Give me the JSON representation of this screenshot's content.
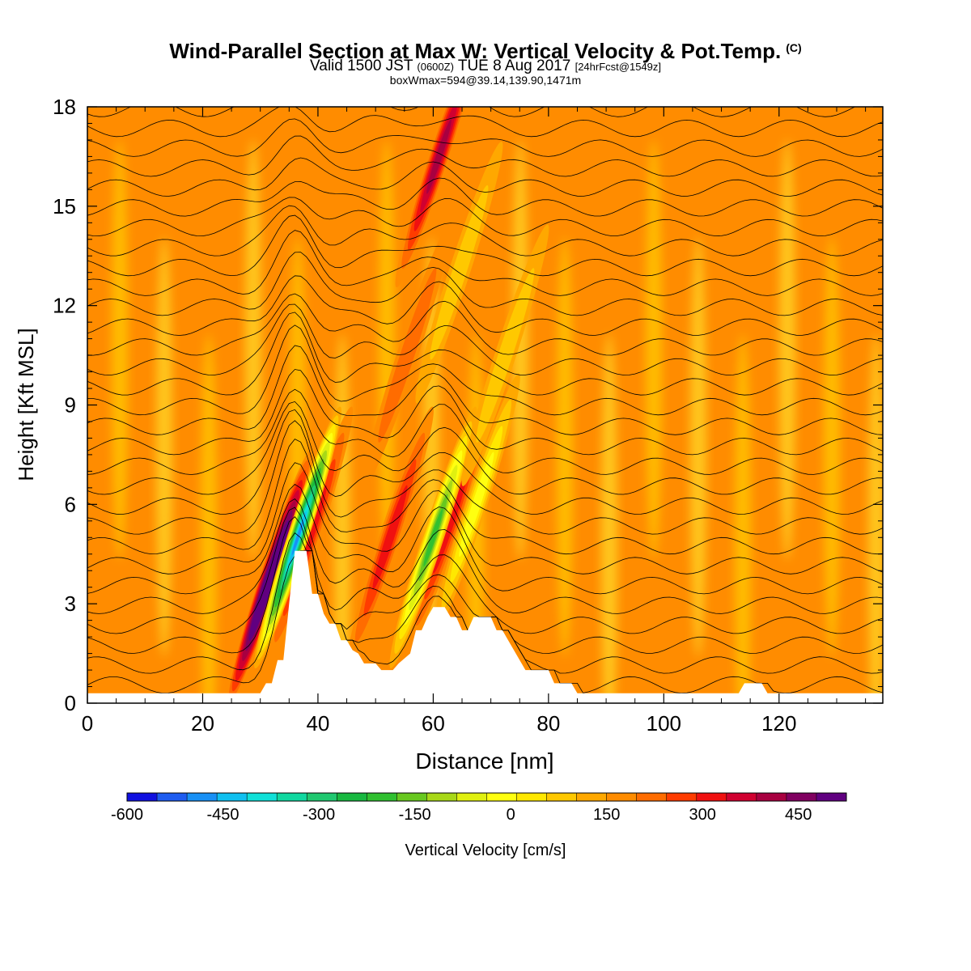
{
  "title": {
    "main": "Wind-Parallel Section at Max W: Vertical Velocity & Pot.Temp.",
    "copyright": "(C)",
    "valid_prefix": "Valid 1500 JST",
    "valid_utc": "(0600Z)",
    "valid_date": "TUE 8 Aug 2017",
    "forecast": "[24hrFcst@1549z]",
    "box_info": "boxWmax=594@39.14,139.90,1471m"
  },
  "chart_data": {
    "type": "heatmap",
    "xlabel": "Distance [nm]",
    "ylabel": "Height [Kft MSL]",
    "xlim": [
      0,
      138
    ],
    "ylim": [
      0,
      18
    ],
    "x_ticks": [
      0,
      20,
      40,
      60,
      80,
      100,
      120
    ],
    "y_ticks": [
      0,
      3,
      6,
      9,
      12,
      15,
      18
    ],
    "colorbar": {
      "label": "Vertical Velocity [cm/s]",
      "range": [
        -600,
        525
      ],
      "step": 37.5,
      "ticks": [
        -600,
        -450,
        -300,
        -150,
        0,
        150,
        300,
        450
      ],
      "colors": [
        "#1010e0",
        "#1e5cf0",
        "#1890f5",
        "#10c0f0",
        "#10e0d8",
        "#10d8a0",
        "#20c870",
        "#18b840",
        "#30c030",
        "#68c820",
        "#a8d818",
        "#e0f010",
        "#ffff10",
        "#ffe800",
        "#ffc800",
        "#ffa800",
        "#ff8c00",
        "#ff6c00",
        "#ff3c00",
        "#f01010",
        "#d00030",
        "#a80040",
        "#800060",
        "#600080"
      ]
    },
    "background_w": 0,
    "updrafts_cm_s": [
      {
        "x_nm": 31.5,
        "z_kft": 3.7,
        "w": 450
      },
      {
        "x_nm": 38.5,
        "z_kft": 5.0,
        "w": 150
      },
      {
        "x_nm": 52.5,
        "z_kft": 5.0,
        "w": 150
      },
      {
        "x_nm": 61.0,
        "z_kft": 16.5,
        "w": 225
      },
      {
        "x_nm": 63.0,
        "z_kft": 5.5,
        "w": 150
      },
      {
        "x_nm": 55.5,
        "z_kft": 10.5,
        "w": 75
      }
    ],
    "downdrafts_cm_s": [
      {
        "x_nm": 36.5,
        "z_kft": 5.0,
        "w": -525
      },
      {
        "x_nm": 60.0,
        "z_kft": 5.0,
        "w": -300
      },
      {
        "x_nm": 67.5,
        "z_kft": 6.0,
        "w": -150
      },
      {
        "x_nm": 64.5,
        "z_kft": 13.0,
        "w": -75
      },
      {
        "x_nm": 72.5,
        "z_kft": 10.5,
        "w": -75
      }
    ],
    "terrain_kft": [
      [
        0,
        0.3
      ],
      [
        30,
        0.3
      ],
      [
        31,
        0.6
      ],
      [
        32,
        0.6
      ],
      [
        33,
        1.3
      ],
      [
        34,
        1.3
      ],
      [
        35,
        3.0
      ],
      [
        36,
        4.6
      ],
      [
        38,
        4.6
      ],
      [
        39,
        3.3
      ],
      [
        40,
        3.3
      ],
      [
        41,
        2.7
      ],
      [
        42,
        2.4
      ],
      [
        43,
        2.4
      ],
      [
        44,
        1.9
      ],
      [
        45,
        1.9
      ],
      [
        46,
        1.6
      ],
      [
        47,
        1.5
      ],
      [
        48,
        1.2
      ],
      [
        50,
        1.2
      ],
      [
        51,
        1.0
      ],
      [
        53,
        1.0
      ],
      [
        54,
        1.2
      ],
      [
        56,
        1.5
      ],
      [
        57,
        2.2
      ],
      [
        58,
        2.2
      ],
      [
        59,
        2.6
      ],
      [
        60,
        2.9
      ],
      [
        62,
        2.9
      ],
      [
        63,
        2.6
      ],
      [
        64,
        2.6
      ],
      [
        65,
        2.2
      ],
      [
        66,
        2.2
      ],
      [
        67,
        2.6
      ],
      [
        70,
        2.6
      ],
      [
        71,
        2.2
      ],
      [
        72,
        2.2
      ],
      [
        73,
        1.9
      ],
      [
        74,
        1.6
      ],
      [
        75,
        1.3
      ],
      [
        76,
        1.0
      ],
      [
        80,
        1.0
      ],
      [
        81,
        0.6
      ],
      [
        84,
        0.6
      ],
      [
        85,
        0.3
      ],
      [
        113,
        0.3
      ],
      [
        114,
        0.6
      ],
      [
        117,
        0.6
      ],
      [
        118,
        0.3
      ],
      [
        138,
        0.3
      ]
    ]
  }
}
